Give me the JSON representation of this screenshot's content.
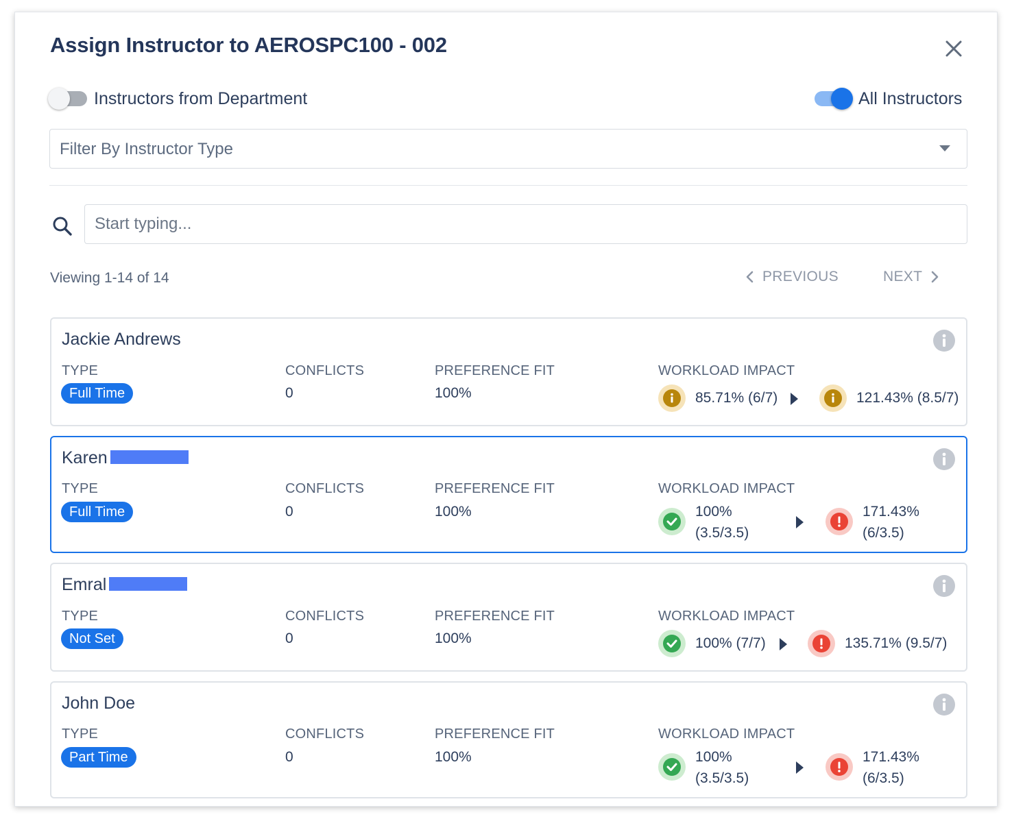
{
  "dialog": {
    "title": "Assign Instructor to AEROSPC100 - 002",
    "toggles": {
      "department_label": "Instructors from Department",
      "department_on": false,
      "all_label": "All Instructors",
      "all_on": true
    },
    "filter": {
      "placeholder": "Filter By Instructor Type"
    },
    "search": {
      "placeholder": "Start typing..."
    },
    "pagination": {
      "viewing": "Viewing 1-14 of 14",
      "previous_label": "PREVIOUS",
      "next_label": "NEXT"
    },
    "column_labels": {
      "type": "TYPE",
      "conflicts": "CONFLICTS",
      "preference_fit": "PREFERENCE FIT",
      "workload_impact": "WORKLOAD IMPACT"
    },
    "instructors": [
      {
        "name": "Jackie Andrews",
        "type": "Full Time",
        "conflicts": "0",
        "preference_fit": "100%",
        "workload_current": {
          "status": "info",
          "text_line1": "85.71% (6/7)",
          "text_line2": ""
        },
        "workload_after": {
          "status": "info",
          "text_line1": "121.43% (8.5/7)",
          "text_line2": ""
        }
      },
      {
        "name": "Karen",
        "type": "Full Time",
        "conflicts": "0",
        "preference_fit": "100%",
        "workload_current": {
          "status": "ok",
          "text_line1": "100%",
          "text_line2": "(3.5/3.5)"
        },
        "workload_after": {
          "status": "error",
          "text_line1": "171.43%",
          "text_line2": "(6/3.5)"
        }
      },
      {
        "name": "Emral",
        "type": "Not Set",
        "conflicts": "0",
        "preference_fit": "100%",
        "workload_current": {
          "status": "ok",
          "text_line1": "100% (7/7)",
          "text_line2": ""
        },
        "workload_after": {
          "status": "error",
          "text_line1": "135.71% (9.5/7)",
          "text_line2": ""
        }
      },
      {
        "name": "John Doe",
        "type": "Part Time",
        "conflicts": "0",
        "preference_fit": "100%",
        "workload_current": {
          "status": "ok",
          "text_line1": "100%",
          "text_line2": "(3.5/3.5)"
        },
        "workload_after": {
          "status": "error",
          "text_line1": "171.43%",
          "text_line2": "(6/3.5)"
        }
      }
    ],
    "colors": {
      "accent": "#1a73e8",
      "text": "#2d3e5c",
      "info_fill": "#b8860b",
      "info_ring": "#f6e3b8",
      "ok_fill": "#34a853",
      "ok_ring": "#cdeccf",
      "error_fill": "#ea4335",
      "error_ring": "#f9c9c4"
    }
  }
}
